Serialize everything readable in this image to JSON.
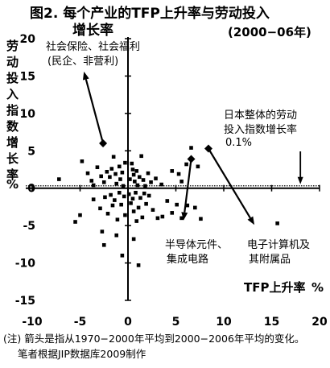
{
  "chart_data": {
    "type": "scatter",
    "title_line1": "图2. 每个产业的TFP上升率与劳动投入",
    "title_line2": "增长率",
    "period": "(2000−06年)",
    "ylabel": "劳动投入指数增长率",
    "yunit": "%",
    "xlabel": "TFP上升率",
    "xunit": "%",
    "xlim": [
      -10,
      20
    ],
    "ylim": [
      -15,
      20
    ],
    "x_ticks": [
      "-10",
      "-5",
      "0",
      "5",
      "10",
      "15",
      "20"
    ],
    "y_ticks": [
      "20",
      "15",
      "10",
      "5",
      "0",
      "-5",
      "-10",
      "-15"
    ],
    "reference_line": {
      "y": 0.1,
      "label_line1": "日本整体的劳动",
      "label_line2": "投入指数增长率",
      "label_line3": "0.1%"
    },
    "annotations": {
      "social": {
        "line1": "社会保险、社会福利",
        "line2": "(民企、非营利)"
      },
      "semi": {
        "line1": "半导体元件、",
        "line2": "集成电路"
      },
      "computer": {
        "line1": "电子计算机及",
        "line2": "其附属品"
      }
    },
    "arrows": [
      {
        "name": "social-insurance",
        "from": [
          -2.6,
          6.0
        ],
        "to": [
          -4.6,
          15.6
        ]
      },
      {
        "name": "semiconductor",
        "from": [
          6.6,
          3.9
        ],
        "to": [
          5.8,
          -4.3
        ]
      },
      {
        "name": "computer",
        "from": [
          8.4,
          5.3
        ],
        "to": [
          13.2,
          -4.9
        ]
      }
    ],
    "points": [
      [
        -7.2,
        1.2
      ],
      [
        -4.8,
        3.6
      ],
      [
        -4.2,
        2.0
      ],
      [
        -3.8,
        1.0
      ],
      [
        -3.6,
        0.4
      ],
      [
        -3.2,
        2.8
      ],
      [
        -2.8,
        1.6
      ],
      [
        -2.5,
        0.8
      ],
      [
        -2.2,
        2.2
      ],
      [
        -1.9,
        1.5
      ],
      [
        -1.7,
        2.6
      ],
      [
        -1.5,
        4.2
      ],
      [
        -1.3,
        1.9
      ],
      [
        -1.2,
        0.6
      ],
      [
        -0.9,
        2.9
      ],
      [
        -0.8,
        1.2
      ],
      [
        -0.6,
        2.1
      ],
      [
        -0.5,
        0.3
      ],
      [
        -0.3,
        3.4
      ],
      [
        0.2,
        1.2
      ],
      [
        0.4,
        3.3
      ],
      [
        0.5,
        2.5
      ],
      [
        0.6,
        1.8
      ],
      [
        0.7,
        0.9
      ],
      [
        0.9,
        2.3
      ],
      [
        1.0,
        0.4
      ],
      [
        1.2,
        1.5
      ],
      [
        1.4,
        4.3
      ],
      [
        1.6,
        1.1
      ],
      [
        1.8,
        0.3
      ],
      [
        2.1,
        2.0
      ],
      [
        2.4,
        0.8
      ],
      [
        2.9,
        1.3
      ],
      [
        3.5,
        0.5
      ],
      [
        4.6,
        2.3
      ],
      [
        5.3,
        1.9
      ],
      [
        5.6,
        0.9
      ],
      [
        6.1,
        3.2
      ],
      [
        6.6,
        5.4
      ],
      [
        7.3,
        2.9
      ],
      [
        -3.6,
        -1.5
      ],
      [
        -2.9,
        -2.7
      ],
      [
        -2.4,
        -1.2
      ],
      [
        -2.1,
        -3.4
      ],
      [
        -1.8,
        -0.9
      ],
      [
        -1.6,
        -2.3
      ],
      [
        -1.4,
        -1.6
      ],
      [
        -1.1,
        -4.2
      ],
      [
        -0.9,
        -0.6
      ],
      [
        -0.7,
        -2.2
      ],
      [
        -0.4,
        -1.1
      ],
      [
        -0.3,
        -3.6
      ],
      [
        0.1,
        -0.8
      ],
      [
        0.3,
        -2.0
      ],
      [
        0.5,
        -1.4
      ],
      [
        0.6,
        -3.1
      ],
      [
        0.8,
        -0.6
      ],
      [
        0.9,
        -4.4
      ],
      [
        1.1,
        -2.6
      ],
      [
        1.3,
        -1.3
      ],
      [
        1.5,
        -3.9
      ],
      [
        1.7,
        -0.7
      ],
      [
        1.9,
        -2.1
      ],
      [
        2.2,
        -1.0
      ],
      [
        2.6,
        -2.9
      ],
      [
        3.1,
        -4.0
      ],
      [
        3.6,
        -3.8
      ],
      [
        4.1,
        -1.7
      ],
      [
        4.6,
        -3.3
      ],
      [
        5.1,
        -2.2
      ],
      [
        5.6,
        -4.0
      ],
      [
        6.2,
        -2.3
      ],
      [
        7.0,
        -2.6
      ],
      [
        7.6,
        -4.1
      ],
      [
        15.6,
        -4.7
      ],
      [
        -2.7,
        -5.8
      ],
      [
        -2.5,
        -7.6
      ],
      [
        -1.2,
        -6.3
      ],
      [
        -0.6,
        -9.0
      ],
      [
        0.6,
        -6.8
      ],
      [
        1.1,
        -10.3
      ],
      [
        -5.0,
        -3.6
      ],
      [
        -5.5,
        -4.5
      ]
    ],
    "markers": [
      [
        -2.6,
        6.0
      ],
      [
        6.6,
        3.9
      ],
      [
        8.4,
        5.3
      ]
    ]
  },
  "footnote": {
    "line1": "(注) 箭头是指从1970−2000年平均到2000−2006年平均的变化。",
    "line2": "笔者根据JIP数据库2009制作"
  }
}
